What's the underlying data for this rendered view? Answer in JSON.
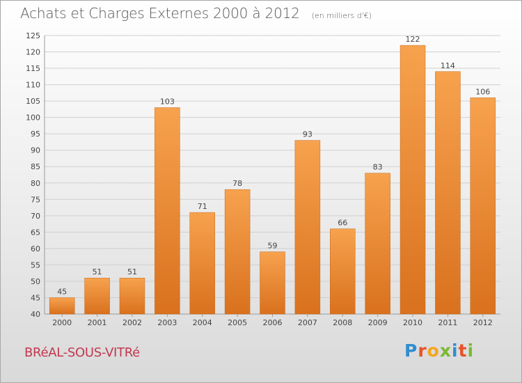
{
  "header": {
    "title": "Achats et Charges Externes 2000 à 2012",
    "unit": "(en milliers d'€)"
  },
  "footer": {
    "city": "BRéAL-SOUS-VITRé",
    "brand_letters": [
      "P",
      "r",
      "o",
      "x",
      "i",
      "t",
      "i"
    ]
  },
  "colors": {
    "bar_light": "#f7a24e",
    "bar_dark": "#d9711e",
    "grid": "#cfcfcf",
    "axis_text": "#444444"
  },
  "chart_data": {
    "type": "bar",
    "title": "Achats et Charges Externes 2000 à 2012",
    "subtitle": "(en milliers d'€)",
    "categories": [
      "2000",
      "2001",
      "2002",
      "2003",
      "2004",
      "2005",
      "2006",
      "2007",
      "2008",
      "2009",
      "2010",
      "2011",
      "2012"
    ],
    "values": [
      45,
      51,
      51,
      103,
      71,
      78,
      59,
      93,
      66,
      83,
      122,
      114,
      106
    ],
    "ylim": [
      40,
      125
    ],
    "yticks": [
      40,
      45,
      50,
      55,
      60,
      65,
      70,
      75,
      80,
      85,
      90,
      95,
      100,
      105,
      110,
      115,
      120,
      125
    ],
    "xlabel": "",
    "ylabel": "",
    "grid": true,
    "legend": "none"
  }
}
